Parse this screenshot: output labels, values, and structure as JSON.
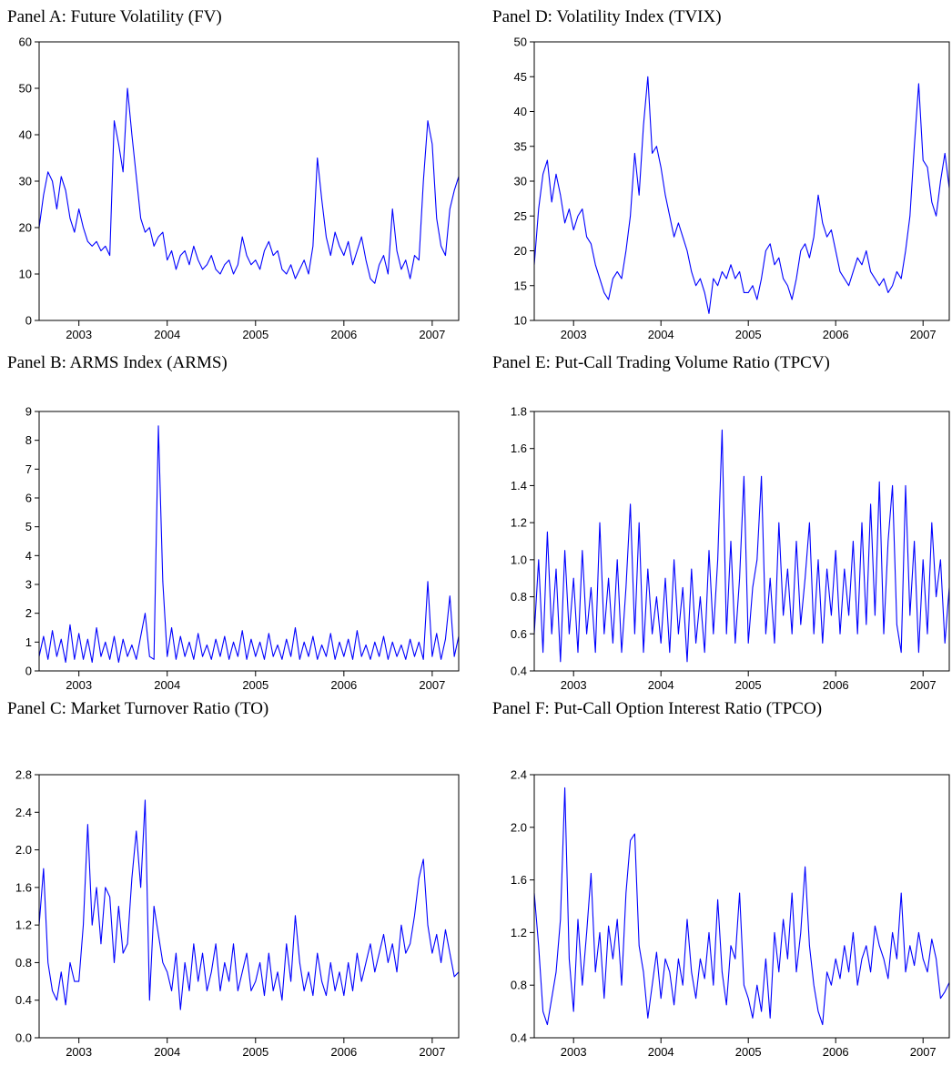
{
  "chart_data": [
    {
      "type": "line",
      "title": "Panel A: Future Volatility (FV)",
      "x": [
        2002.55,
        2002.6,
        2002.65,
        2002.7,
        2002.75,
        2002.8,
        2002.85,
        2002.9,
        2002.95,
        2003,
        2003.05,
        2003.1,
        2003.15,
        2003.2,
        2003.25,
        2003.3,
        2003.35,
        2003.4,
        2003.45,
        2003.5,
        2003.55,
        2003.6,
        2003.65,
        2003.7,
        2003.75,
        2003.8,
        2003.85,
        2003.9,
        2003.95,
        2004,
        2004.05,
        2004.1,
        2004.15,
        2004.2,
        2004.25,
        2004.3,
        2004.35,
        2004.4,
        2004.45,
        2004.5,
        2004.55,
        2004.6,
        2004.65,
        2004.7,
        2004.75,
        2004.8,
        2004.85,
        2004.9,
        2004.95,
        2005,
        2005.05,
        2005.1,
        2005.15,
        2005.2,
        2005.25,
        2005.3,
        2005.35,
        2005.4,
        2005.45,
        2005.5,
        2005.55,
        2005.6,
        2005.65,
        2005.7,
        2005.75,
        2005.8,
        2005.85,
        2005.9,
        2005.95,
        2006,
        2006.05,
        2006.1,
        2006.15,
        2006.2,
        2006.25,
        2006.3,
        2006.35,
        2006.4,
        2006.45,
        2006.5,
        2006.55,
        2006.6,
        2006.65,
        2006.7,
        2006.75,
        2006.8,
        2006.85,
        2006.9,
        2006.95,
        2007,
        2007.05,
        2007.1,
        2007.15,
        2007.2,
        2007.25,
        2007.3
      ],
      "values": [
        20,
        27,
        32,
        30,
        24,
        31,
        28,
        22,
        19,
        24,
        20,
        17,
        16,
        17,
        15,
        16,
        14,
        43,
        38,
        32,
        50,
        40,
        31,
        22,
        19,
        20,
        16,
        18,
        19,
        13,
        15,
        11,
        14,
        15,
        12,
        16,
        13,
        11,
        12,
        14,
        11,
        10,
        12,
        13,
        10,
        12,
        18,
        14,
        12,
        13,
        11,
        15,
        17,
        14,
        15,
        11,
        10,
        12,
        9,
        11,
        13,
        10,
        16,
        35,
        26,
        18,
        14,
        19,
        16,
        14,
        17,
        12,
        15,
        18,
        13,
        9,
        8,
        12,
        14,
        10,
        24,
        15,
        11,
        13,
        9,
        14,
        13,
        30,
        43,
        38,
        22,
        16,
        14,
        24,
        28,
        31
      ],
      "color": "#0000ff",
      "xlim": [
        2002.55,
        2007.3
      ],
      "xticks": [
        2003,
        2004,
        2005,
        2006,
        2007
      ],
      "ylim": [
        0,
        60
      ],
      "yticks": [
        0,
        10,
        20,
        30,
        40,
        50,
        60
      ]
    },
    {
      "type": "line",
      "title": "Panel B: ARMS Index (ARMS)",
      "x": [
        2002.55,
        2002.6,
        2002.65,
        2002.7,
        2002.75,
        2002.8,
        2002.85,
        2002.9,
        2002.95,
        2003,
        2003.05,
        2003.1,
        2003.15,
        2003.2,
        2003.25,
        2003.3,
        2003.35,
        2003.4,
        2003.45,
        2003.5,
        2003.55,
        2003.6,
        2003.65,
        2003.7,
        2003.75,
        2003.8,
        2003.85,
        2003.9,
        2003.95,
        2004,
        2004.05,
        2004.1,
        2004.15,
        2004.2,
        2004.25,
        2004.3,
        2004.35,
        2004.4,
        2004.45,
        2004.5,
        2004.55,
        2004.6,
        2004.65,
        2004.7,
        2004.75,
        2004.8,
        2004.85,
        2004.9,
        2004.95,
        2005,
        2005.05,
        2005.1,
        2005.15,
        2005.2,
        2005.25,
        2005.3,
        2005.35,
        2005.4,
        2005.45,
        2005.5,
        2005.55,
        2005.6,
        2005.65,
        2005.7,
        2005.75,
        2005.8,
        2005.85,
        2005.9,
        2005.95,
        2006,
        2006.05,
        2006.1,
        2006.15,
        2006.2,
        2006.25,
        2006.3,
        2006.35,
        2006.4,
        2006.45,
        2006.5,
        2006.55,
        2006.6,
        2006.65,
        2006.7,
        2006.75,
        2006.8,
        2006.85,
        2006.9,
        2006.95,
        2007,
        2007.05,
        2007.1,
        2007.15,
        2007.2,
        2007.25,
        2007.3
      ],
      "values": [
        0.5,
        1.2,
        0.4,
        1.4,
        0.5,
        1.1,
        0.3,
        1.6,
        0.4,
        1.3,
        0.4,
        1.1,
        0.3,
        1.5,
        0.5,
        1.0,
        0.4,
        1.2,
        0.3,
        1.1,
        0.5,
        0.9,
        0.4,
        1.2,
        2.0,
        0.5,
        0.4,
        8.5,
        3.1,
        0.5,
        1.5,
        0.4,
        1.2,
        0.5,
        1.0,
        0.4,
        1.3,
        0.5,
        0.9,
        0.4,
        1.1,
        0.5,
        1.2,
        0.4,
        1.0,
        0.5,
        1.4,
        0.4,
        1.1,
        0.5,
        1.0,
        0.4,
        1.3,
        0.5,
        0.9,
        0.4,
        1.1,
        0.5,
        1.5,
        0.4,
        1.0,
        0.5,
        1.2,
        0.4,
        0.9,
        0.5,
        1.3,
        0.4,
        1.0,
        0.5,
        1.1,
        0.4,
        1.4,
        0.5,
        0.9,
        0.4,
        1.0,
        0.5,
        1.2,
        0.4,
        1.0,
        0.5,
        0.9,
        0.4,
        1.1,
        0.5,
        1.0,
        0.4,
        3.1,
        0.5,
        1.3,
        0.4,
        1.1,
        2.6,
        0.5,
        1.2
      ],
      "color": "#0000ff",
      "xlim": [
        2002.55,
        2007.3
      ],
      "xticks": [
        2003,
        2004,
        2005,
        2006,
        2007
      ],
      "ylim": [
        0,
        9
      ],
      "yticks": [
        0,
        1,
        2,
        3,
        4,
        5,
        6,
        7,
        8,
        9
      ]
    },
    {
      "type": "line",
      "title": "Panel C: Market Turnover Ratio (TO)",
      "x": [
        2002.55,
        2002.6,
        2002.65,
        2002.7,
        2002.75,
        2002.8,
        2002.85,
        2002.9,
        2002.95,
        2003,
        2003.05,
        2003.1,
        2003.15,
        2003.2,
        2003.25,
        2003.3,
        2003.35,
        2003.4,
        2003.45,
        2003.5,
        2003.55,
        2003.6,
        2003.65,
        2003.7,
        2003.75,
        2003.8,
        2003.85,
        2003.9,
        2003.95,
        2004,
        2004.05,
        2004.1,
        2004.15,
        2004.2,
        2004.25,
        2004.3,
        2004.35,
        2004.4,
        2004.45,
        2004.5,
        2004.55,
        2004.6,
        2004.65,
        2004.7,
        2004.75,
        2004.8,
        2004.85,
        2004.9,
        2004.95,
        2005,
        2005.05,
        2005.1,
        2005.15,
        2005.2,
        2005.25,
        2005.3,
        2005.35,
        2005.4,
        2005.45,
        2005.5,
        2005.55,
        2005.6,
        2005.65,
        2005.7,
        2005.75,
        2005.8,
        2005.85,
        2005.9,
        2005.95,
        2006,
        2006.05,
        2006.1,
        2006.15,
        2006.2,
        2006.25,
        2006.3,
        2006.35,
        2006.4,
        2006.45,
        2006.5,
        2006.55,
        2006.6,
        2006.65,
        2006.7,
        2006.75,
        2006.8,
        2006.85,
        2006.9,
        2006.95,
        2007,
        2007.05,
        2007.1,
        2007.15,
        2007.2,
        2007.25,
        2007.3
      ],
      "values": [
        1.2,
        1.8,
        0.8,
        0.5,
        0.4,
        0.7,
        0.35,
        0.8,
        0.6,
        0.6,
        1.2,
        2.27,
        1.2,
        1.6,
        1.0,
        1.6,
        1.5,
        0.8,
        1.4,
        0.9,
        1.0,
        1.7,
        2.2,
        1.6,
        2.53,
        0.4,
        1.4,
        1.1,
        0.8,
        0.7,
        0.5,
        0.9,
        0.3,
        0.8,
        0.5,
        1.0,
        0.6,
        0.9,
        0.5,
        0.7,
        1.0,
        0.5,
        0.8,
        0.6,
        1.0,
        0.5,
        0.7,
        0.9,
        0.5,
        0.6,
        0.8,
        0.45,
        0.9,
        0.5,
        0.7,
        0.4,
        1.0,
        0.6,
        1.3,
        0.8,
        0.5,
        0.7,
        0.45,
        0.9,
        0.6,
        0.45,
        0.8,
        0.5,
        0.7,
        0.45,
        0.8,
        0.5,
        0.9,
        0.6,
        0.8,
        1.0,
        0.7,
        0.9,
        1.1,
        0.8,
        1.0,
        0.7,
        1.2,
        0.9,
        1.0,
        1.3,
        1.7,
        1.9,
        1.2,
        0.9,
        1.1,
        0.8,
        1.15,
        0.9,
        0.65,
        0.7
      ],
      "color": "#0000ff",
      "xlim": [
        2002.55,
        2007.3
      ],
      "xticks": [
        2003,
        2004,
        2005,
        2006,
        2007
      ],
      "ylim": [
        0,
        2.8
      ],
      "yticks": [
        {
          "value": 0,
          "label": "0.0"
        },
        0.4,
        0.8,
        1.2,
        1.6,
        {
          "value": 2,
          "label": "2.0"
        },
        2.4,
        2.8
      ]
    },
    {
      "type": "line",
      "title": "Panel D: Volatility Index (TVIX)",
      "x": [
        2002.55,
        2002.6,
        2002.65,
        2002.7,
        2002.75,
        2002.8,
        2002.85,
        2002.9,
        2002.95,
        2003,
        2003.05,
        2003.1,
        2003.15,
        2003.2,
        2003.25,
        2003.3,
        2003.35,
        2003.4,
        2003.45,
        2003.5,
        2003.55,
        2003.6,
        2003.65,
        2003.7,
        2003.75,
        2003.8,
        2003.85,
        2003.9,
        2003.95,
        2004,
        2004.05,
        2004.1,
        2004.15,
        2004.2,
        2004.25,
        2004.3,
        2004.35,
        2004.4,
        2004.45,
        2004.5,
        2004.55,
        2004.6,
        2004.65,
        2004.7,
        2004.75,
        2004.8,
        2004.85,
        2004.9,
        2004.95,
        2005,
        2005.05,
        2005.1,
        2005.15,
        2005.2,
        2005.25,
        2005.3,
        2005.35,
        2005.4,
        2005.45,
        2005.5,
        2005.55,
        2005.6,
        2005.65,
        2005.7,
        2005.75,
        2005.8,
        2005.85,
        2005.9,
        2005.95,
        2006,
        2006.05,
        2006.1,
        2006.15,
        2006.2,
        2006.25,
        2006.3,
        2006.35,
        2006.4,
        2006.45,
        2006.5,
        2006.55,
        2006.6,
        2006.65,
        2006.7,
        2006.75,
        2006.8,
        2006.85,
        2006.9,
        2006.95,
        2007,
        2007.05,
        2007.1,
        2007.15,
        2007.2,
        2007.25,
        2007.3
      ],
      "values": [
        18,
        26,
        31,
        33,
        27,
        31,
        28,
        24,
        26,
        23,
        25,
        26,
        22,
        21,
        18,
        16,
        14,
        13,
        16,
        17,
        16,
        20,
        25,
        34,
        28,
        38,
        45,
        34,
        35,
        32,
        28,
        25,
        22,
        24,
        22,
        20,
        17,
        15,
        16,
        14,
        11,
        16,
        15,
        17,
        16,
        18,
        16,
        17,
        14,
        14,
        15,
        13,
        16,
        20,
        21,
        18,
        19,
        16,
        15,
        13,
        16,
        20,
        21,
        19,
        22,
        28,
        24,
        22,
        23,
        20,
        17,
        16,
        15,
        17,
        19,
        18,
        20,
        17,
        16,
        15,
        16,
        14,
        15,
        17,
        16,
        20,
        25,
        35,
        44,
        33,
        32,
        27,
        25,
        30,
        34,
        29
      ],
      "color": "#0000ff",
      "xlim": [
        2002.55,
        2007.3
      ],
      "xticks": [
        2003,
        2004,
        2005,
        2006,
        2007
      ],
      "ylim": [
        10,
        50
      ],
      "yticks": [
        10,
        15,
        20,
        25,
        30,
        35,
        40,
        45,
        50
      ]
    },
    {
      "type": "line",
      "title": "Panel E: Put-Call Trading Volume Ratio (TPCV)",
      "x": [
        2002.55,
        2002.6,
        2002.65,
        2002.7,
        2002.75,
        2002.8,
        2002.85,
        2002.9,
        2002.95,
        2003,
        2003.05,
        2003.1,
        2003.15,
        2003.2,
        2003.25,
        2003.3,
        2003.35,
        2003.4,
        2003.45,
        2003.5,
        2003.55,
        2003.6,
        2003.65,
        2003.7,
        2003.75,
        2003.8,
        2003.85,
        2003.9,
        2003.95,
        2004,
        2004.05,
        2004.1,
        2004.15,
        2004.2,
        2004.25,
        2004.3,
        2004.35,
        2004.4,
        2004.45,
        2004.5,
        2004.55,
        2004.6,
        2004.65,
        2004.7,
        2004.75,
        2004.8,
        2004.85,
        2004.9,
        2004.95,
        2005,
        2005.05,
        2005.1,
        2005.15,
        2005.2,
        2005.25,
        2005.3,
        2005.35,
        2005.4,
        2005.45,
        2005.5,
        2005.55,
        2005.6,
        2005.65,
        2005.7,
        2005.75,
        2005.8,
        2005.85,
        2005.9,
        2005.95,
        2006,
        2006.05,
        2006.1,
        2006.15,
        2006.2,
        2006.25,
        2006.3,
        2006.35,
        2006.4,
        2006.45,
        2006.5,
        2006.55,
        2006.6,
        2006.65,
        2006.7,
        2006.75,
        2006.8,
        2006.85,
        2006.9,
        2006.95,
        2007,
        2007.05,
        2007.1,
        2007.15,
        2007.2,
        2007.25,
        2007.3
      ],
      "values": [
        0.6,
        1.0,
        0.5,
        1.15,
        0.6,
        0.95,
        0.45,
        1.05,
        0.6,
        0.9,
        0.5,
        1.05,
        0.6,
        0.85,
        0.5,
        1.2,
        0.6,
        0.9,
        0.55,
        1.0,
        0.5,
        0.85,
        1.3,
        0.6,
        1.2,
        0.5,
        0.95,
        0.6,
        0.8,
        0.55,
        0.9,
        0.5,
        1.0,
        0.6,
        0.85,
        0.45,
        0.95,
        0.55,
        0.8,
        0.5,
        1.05,
        0.6,
        1.0,
        1.7,
        0.6,
        1.1,
        0.55,
        0.9,
        1.45,
        0.55,
        0.85,
        1.0,
        1.45,
        0.6,
        0.9,
        0.55,
        1.2,
        0.7,
        0.95,
        0.6,
        1.1,
        0.65,
        0.9,
        1.2,
        0.6,
        1.0,
        0.55,
        0.95,
        0.7,
        1.05,
        0.6,
        0.95,
        0.7,
        1.1,
        0.6,
        1.2,
        0.65,
        1.3,
        0.7,
        1.42,
        0.6,
        1.1,
        1.4,
        0.65,
        0.5,
        1.4,
        0.7,
        1.1,
        0.5,
        1.0,
        0.6,
        1.2,
        0.8,
        1.0,
        0.55,
        0.85
      ],
      "color": "#0000ff",
      "xlim": [
        2002.55,
        2007.3
      ],
      "xticks": [
        2003,
        2004,
        2005,
        2006,
        2007
      ],
      "ylim": [
        0.4,
        1.8
      ],
      "yticks": [
        0.4,
        0.6,
        0.8,
        {
          "value": 1,
          "label": "1.0"
        },
        1.2,
        1.4,
        1.6,
        1.8
      ]
    },
    {
      "type": "line",
      "title": "Panel F: Put-Call Option Interest Ratio (TPCO)",
      "x": [
        2002.55,
        2002.6,
        2002.65,
        2002.7,
        2002.75,
        2002.8,
        2002.85,
        2002.9,
        2002.95,
        2003,
        2003.05,
        2003.1,
        2003.15,
        2003.2,
        2003.25,
        2003.3,
        2003.35,
        2003.4,
        2003.45,
        2003.5,
        2003.55,
        2003.6,
        2003.65,
        2003.7,
        2003.75,
        2003.8,
        2003.85,
        2003.9,
        2003.95,
        2004,
        2004.05,
        2004.1,
        2004.15,
        2004.2,
        2004.25,
        2004.3,
        2004.35,
        2004.4,
        2004.45,
        2004.5,
        2004.55,
        2004.6,
        2004.65,
        2004.7,
        2004.75,
        2004.8,
        2004.85,
        2004.9,
        2004.95,
        2005,
        2005.05,
        2005.1,
        2005.15,
        2005.2,
        2005.25,
        2005.3,
        2005.35,
        2005.4,
        2005.45,
        2005.5,
        2005.55,
        2005.6,
        2005.65,
        2005.7,
        2005.75,
        2005.8,
        2005.85,
        2005.9,
        2005.95,
        2006,
        2006.05,
        2006.1,
        2006.15,
        2006.2,
        2006.25,
        2006.3,
        2006.35,
        2006.4,
        2006.45,
        2006.5,
        2006.55,
        2006.6,
        2006.65,
        2006.7,
        2006.75,
        2006.8,
        2006.85,
        2006.9,
        2006.95,
        2007,
        2007.05,
        2007.1,
        2007.15,
        2007.2,
        2007.25,
        2007.3
      ],
      "values": [
        1.5,
        1.1,
        0.6,
        0.5,
        0.7,
        0.9,
        1.3,
        2.3,
        1.0,
        0.6,
        1.3,
        0.8,
        1.2,
        1.65,
        0.9,
        1.2,
        0.7,
        1.25,
        1.0,
        1.3,
        0.8,
        1.5,
        1.9,
        1.95,
        1.1,
        0.9,
        0.55,
        0.8,
        1.05,
        0.7,
        1.0,
        0.9,
        0.65,
        1.0,
        0.8,
        1.3,
        0.9,
        0.7,
        1.0,
        0.85,
        1.2,
        0.8,
        1.45,
        0.9,
        0.65,
        1.1,
        1.0,
        1.5,
        0.8,
        0.7,
        0.55,
        0.8,
        0.6,
        1.0,
        0.55,
        1.2,
        0.9,
        1.3,
        1.0,
        1.5,
        0.9,
        1.2,
        1.7,
        1.1,
        0.8,
        0.6,
        0.5,
        0.9,
        0.8,
        1.0,
        0.85,
        1.1,
        0.9,
        1.2,
        0.8,
        1.0,
        1.1,
        0.9,
        1.25,
        1.1,
        1.0,
        0.85,
        1.2,
        1.0,
        1.5,
        0.9,
        1.1,
        0.95,
        1.2,
        1.0,
        0.9,
        1.15,
        1.0,
        0.7,
        0.75,
        0.82
      ],
      "color": "#0000ff",
      "xlim": [
        2002.55,
        2007.3
      ],
      "xticks": [
        2003,
        2004,
        2005,
        2006,
        2007
      ],
      "ylim": [
        0.4,
        2.4
      ],
      "yticks": [
        0.4,
        0.8,
        1.2,
        1.6,
        {
          "value": 2,
          "label": "2.0"
        },
        2.4
      ]
    }
  ]
}
